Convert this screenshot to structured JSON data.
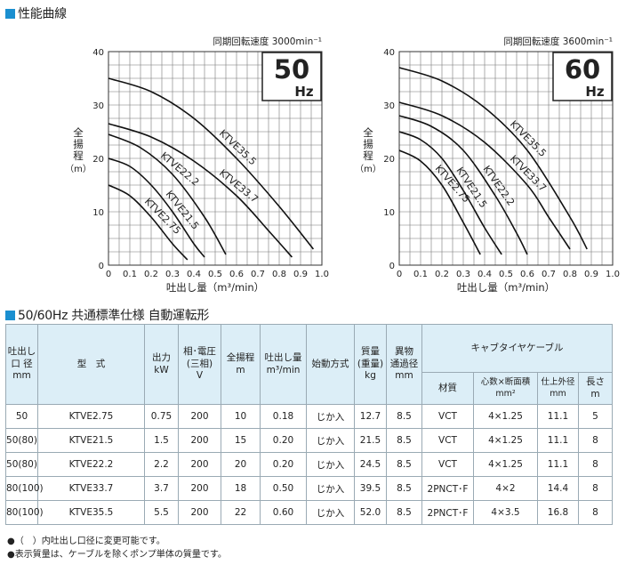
{
  "section1_title": "性能曲線",
  "section2_title": "50/60Hz 共通標準仕様 自動運転形",
  "chart_data": [
    {
      "type": "line",
      "speed_label": "同期回転速度 3000min⁻¹",
      "freq_value": "50",
      "freq_unit": "Hz",
      "xlabel": "吐出し量（m³/min）",
      "ylabel": "全揚程（m）",
      "xlim": [
        0,
        1.0
      ],
      "ylim": [
        0,
        40
      ],
      "xticks": [
        "0",
        "0.1",
        "0.2",
        "0.3",
        "0.4",
        "0.5",
        "0.6",
        "0.7",
        "0.8",
        "0.9",
        "1.0"
      ],
      "yticks": [
        "0",
        "10",
        "20",
        "30",
        "40"
      ],
      "grid": true,
      "series": [
        {
          "name": "KTVE35.5",
          "x": [
            0,
            0.2,
            0.4,
            0.6,
            0.8,
            0.96
          ],
          "y": [
            35,
            32.5,
            27.5,
            20,
            11,
            3
          ]
        },
        {
          "name": "KTVE33.7",
          "x": [
            0,
            0.2,
            0.4,
            0.6,
            0.76,
            0.86
          ],
          "y": [
            26.5,
            24,
            19.5,
            13,
            6,
            1.5
          ]
        },
        {
          "name": "KTVE22.2",
          "x": [
            0,
            0.15,
            0.3,
            0.45,
            0.55
          ],
          "y": [
            24.5,
            22,
            17,
            9,
            2
          ]
        },
        {
          "name": "KTVE21.5",
          "x": [
            0,
            0.1,
            0.2,
            0.3,
            0.4,
            0.45
          ],
          "y": [
            20,
            18.5,
            15,
            10,
            4,
            1.5
          ]
        },
        {
          "name": "KTVE2.75",
          "x": [
            0,
            0.1,
            0.2,
            0.3,
            0.37
          ],
          "y": [
            15,
            13,
            9,
            4,
            1
          ]
        }
      ]
    },
    {
      "type": "line",
      "speed_label": "同期回転速度 3600min⁻¹",
      "freq_value": "60",
      "freq_unit": "Hz",
      "xlabel": "吐出し量（m³/min）",
      "ylabel": "全揚程（m）",
      "xlim": [
        0,
        1.0
      ],
      "ylim": [
        0,
        40
      ],
      "xticks": [
        "0",
        "0.1",
        "0.2",
        "0.3",
        "0.4",
        "0.5",
        "0.6",
        "0.7",
        "0.8",
        "0.9",
        "1.0"
      ],
      "yticks": [
        "0",
        "10",
        "20",
        "30",
        "40"
      ],
      "grid": true,
      "series": [
        {
          "name": "KTVE35.5",
          "x": [
            0,
            0.2,
            0.4,
            0.6,
            0.8,
            0.88
          ],
          "y": [
            37,
            34.5,
            29.5,
            21.5,
            9,
            3
          ]
        },
        {
          "name": "KTVE33.7",
          "x": [
            0,
            0.2,
            0.4,
            0.6,
            0.7,
            0.8
          ],
          "y": [
            30.5,
            28,
            23,
            15,
            9,
            3
          ]
        },
        {
          "name": "KTVE22.2",
          "x": [
            0,
            0.15,
            0.3,
            0.45,
            0.55,
            0.6
          ],
          "y": [
            28,
            26,
            21.5,
            13,
            6,
            2
          ]
        },
        {
          "name": "KTVE21.5",
          "x": [
            0,
            0.1,
            0.2,
            0.3,
            0.4,
            0.48
          ],
          "y": [
            25,
            23.5,
            20,
            14,
            7,
            2
          ]
        },
        {
          "name": "KTVE2.75",
          "x": [
            0,
            0.1,
            0.2,
            0.3,
            0.38
          ],
          "y": [
            21.5,
            19.5,
            15,
            8,
            2
          ]
        }
      ]
    }
  ],
  "table": {
    "headers": {
      "outlet": [
        "吐出し",
        "口 径",
        "mm"
      ],
      "model": "型　式",
      "output": [
        "出力",
        "kW"
      ],
      "phase": [
        "相･電圧",
        "(三相)",
        "V"
      ],
      "head": [
        "全揚程",
        "m"
      ],
      "flow": [
        "吐出し量",
        "m³/min"
      ],
      "start": "始動方式",
      "mass": [
        "質量",
        "(重量)",
        "kg"
      ],
      "foreign": [
        "異物",
        "通過径",
        "mm"
      ],
      "cable": "キャブタイヤケーブル",
      "cable_material": "材質",
      "cable_cores": "心数×断面積",
      "cable_cores_unit": "mm²",
      "cable_diameter": "仕上外径",
      "cable_diameter_unit": "mm",
      "cable_length": [
        "長さ",
        "m"
      ]
    },
    "rows": [
      {
        "outlet": "50",
        "model": "KTVE2.75",
        "output": "0.75",
        "volt": "200",
        "head": "10",
        "flow": "0.18",
        "start": "じか入",
        "mass": "12.7",
        "foreign": "8.5",
        "material": "VCT",
        "cores": "4×1.25",
        "od": "11.1",
        "length": "5"
      },
      {
        "outlet": "50(80)",
        "model": "KTVE21.5",
        "output": "1.5",
        "volt": "200",
        "head": "15",
        "flow": "0.20",
        "start": "じか入",
        "mass": "21.5",
        "foreign": "8.5",
        "material": "VCT",
        "cores": "4×1.25",
        "od": "11.1",
        "length": "8"
      },
      {
        "outlet": "50(80)",
        "model": "KTVE22.2",
        "output": "2.2",
        "volt": "200",
        "head": "20",
        "flow": "0.20",
        "start": "じか入",
        "mass": "24.5",
        "foreign": "8.5",
        "material": "VCT",
        "cores": "4×1.25",
        "od": "11.1",
        "length": "8"
      },
      {
        "outlet": "80(100)",
        "model": "KTVE33.7",
        "output": "3.7",
        "volt": "200",
        "head": "18",
        "flow": "0.50",
        "start": "じか入",
        "mass": "39.5",
        "foreign": "8.5",
        "material": "2PNCT･F",
        "cores": "4×2",
        "od": "14.4",
        "length": "8"
      },
      {
        "outlet": "80(100)",
        "model": "KTVE35.5",
        "output": "5.5",
        "volt": "200",
        "head": "22",
        "flow": "0.60",
        "start": "じか入",
        "mass": "52.0",
        "foreign": "8.5",
        "material": "2PNCT･F",
        "cores": "4×3.5",
        "od": "16.8",
        "length": "8"
      }
    ]
  },
  "notes": [
    "●（　）内吐出し口径に変更可能です。",
    "●表示質量は、ケーブルを除くポンプ単体の質量です。"
  ],
  "colors": {
    "accent": "#1a8fd0",
    "header_bg": "#dceef7",
    "border": "#9aaab4"
  }
}
